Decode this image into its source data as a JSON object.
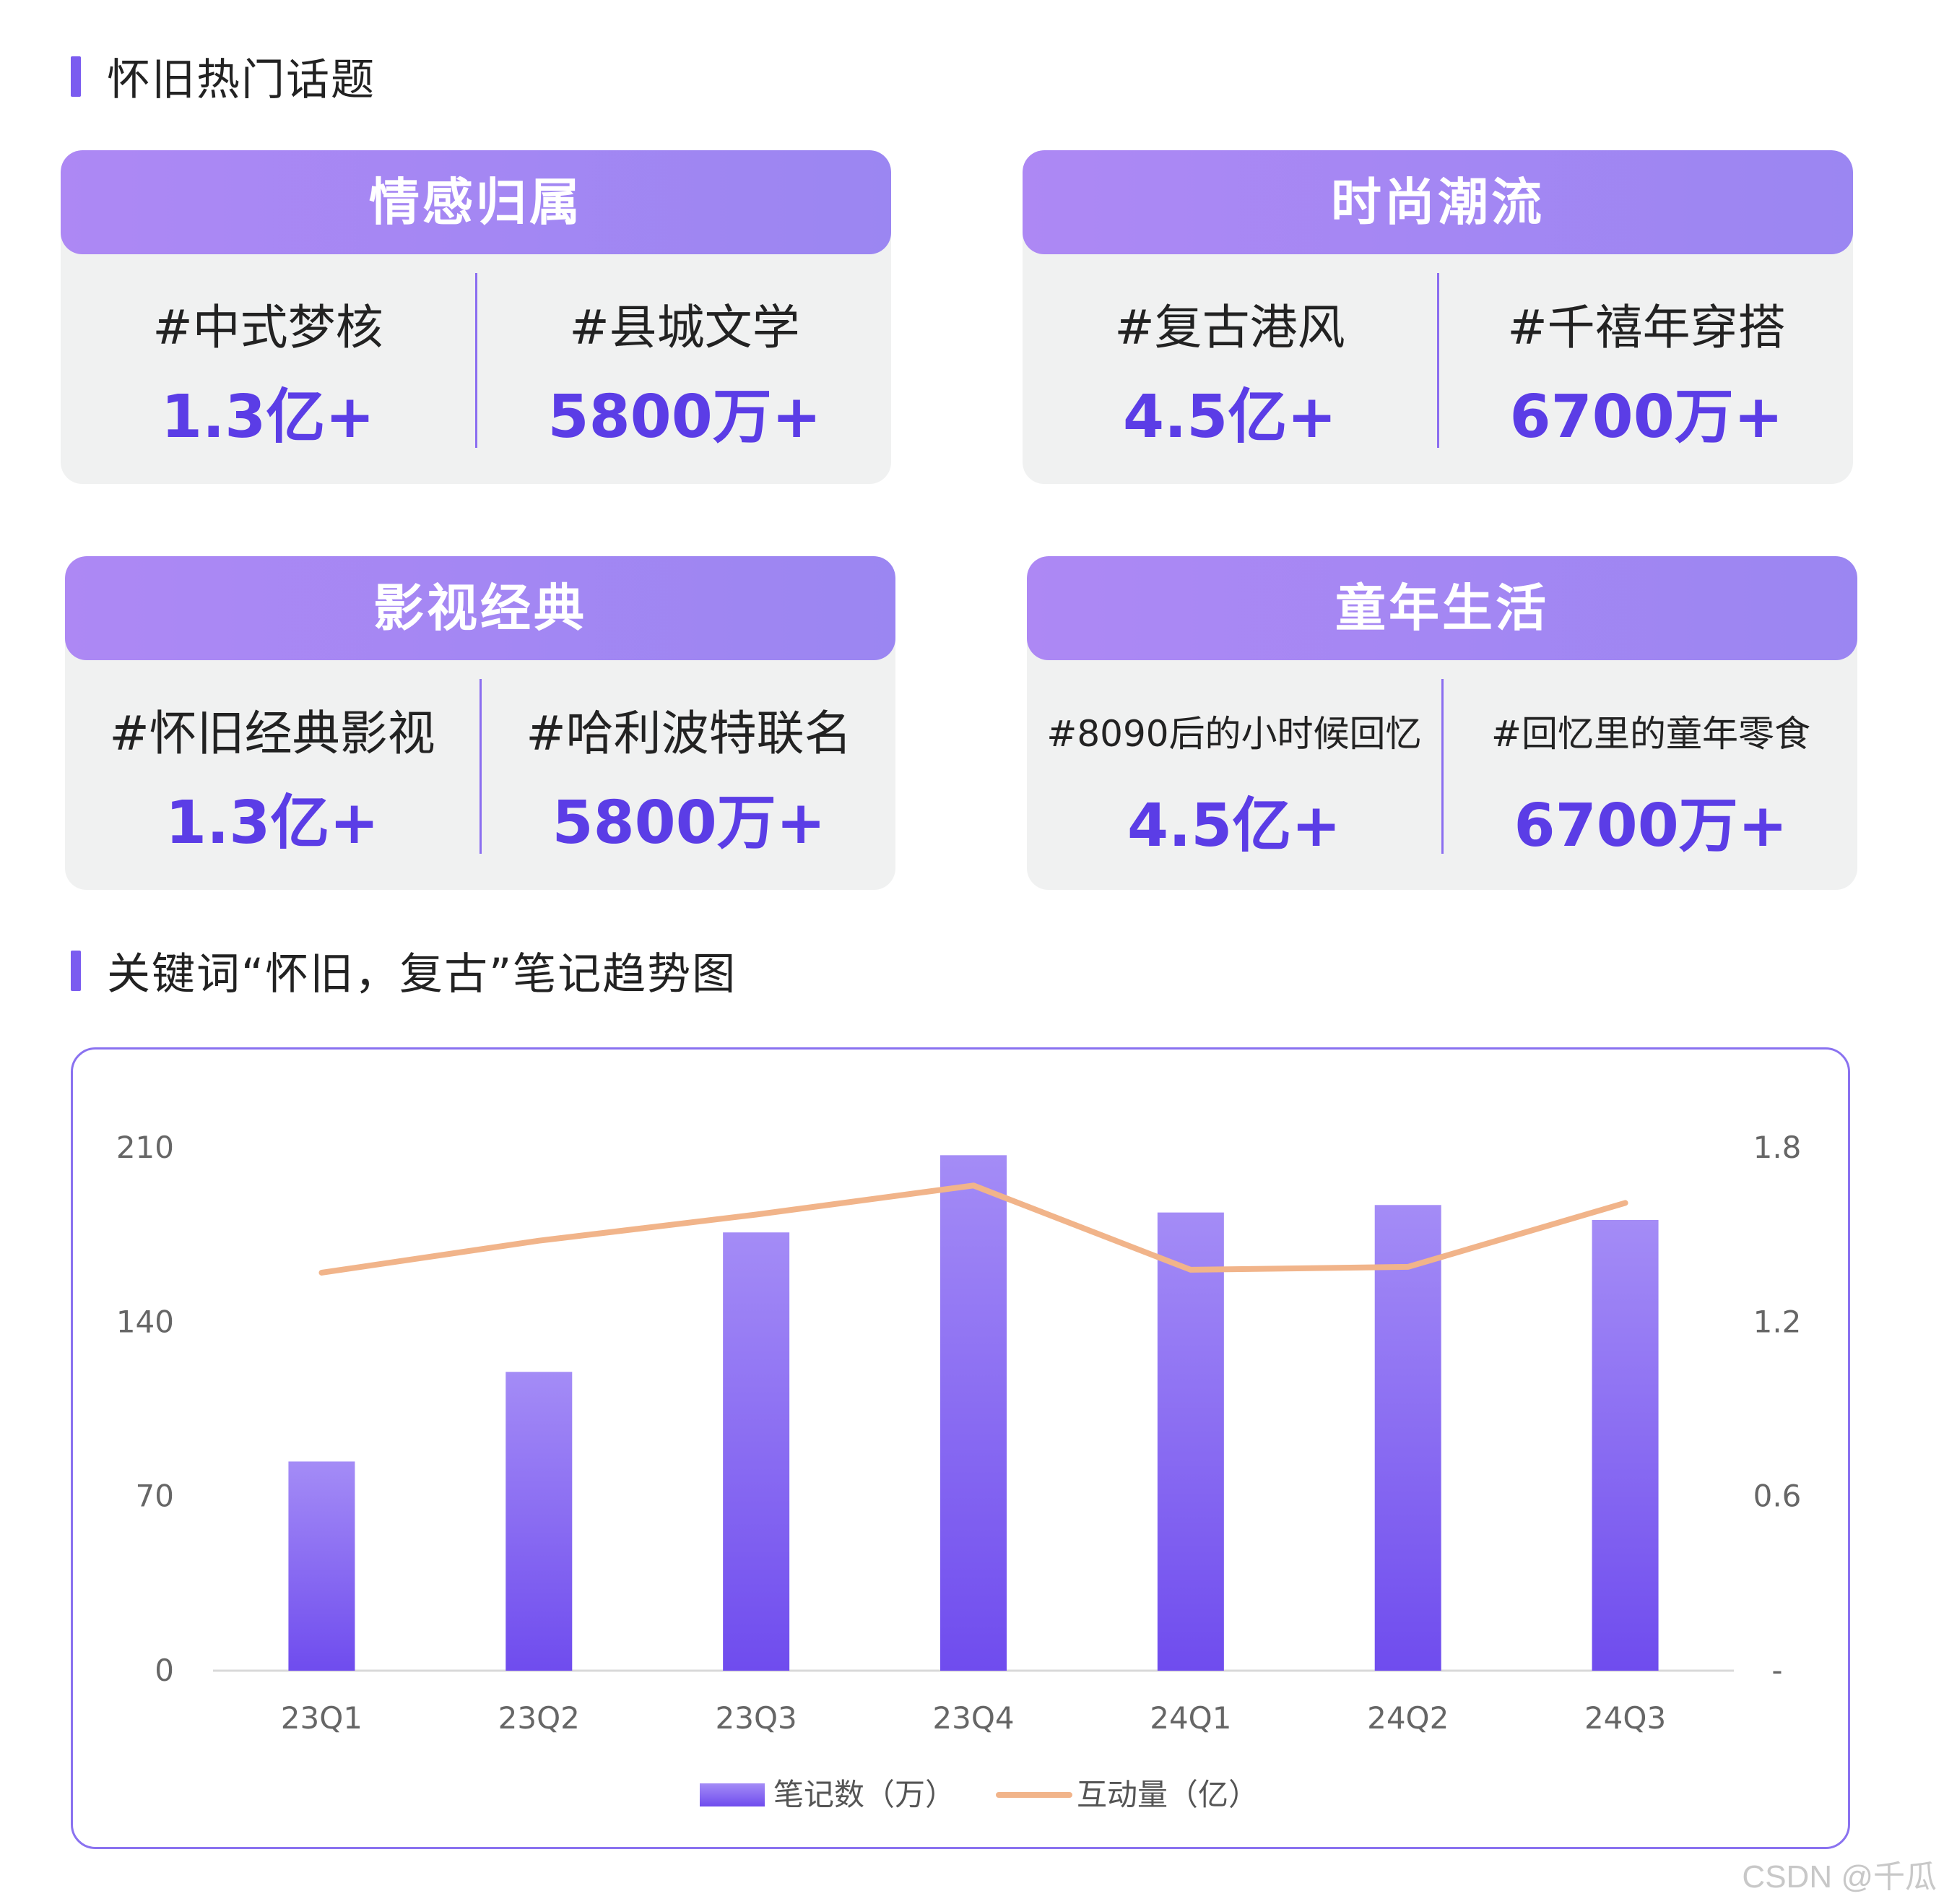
{
  "section1": {
    "title": "怀旧热门话题"
  },
  "cards": [
    {
      "title": "情感归属",
      "items": [
        {
          "topic": "#中式梦核",
          "value": "1.3亿+"
        },
        {
          "topic": "#县城文学",
          "value": "5800万+"
        }
      ]
    },
    {
      "title": "时尚潮流",
      "items": [
        {
          "topic": "#复古港风",
          "value": "4.5亿+"
        },
        {
          "topic": "#千禧年穿搭",
          "value": "6700万+"
        }
      ]
    },
    {
      "title": "影视经典",
      "items": [
        {
          "topic": "#怀旧经典影视",
          "value": "1.3亿+"
        },
        {
          "topic": "#哈利波特联名",
          "value": "5800万+"
        }
      ]
    },
    {
      "title": "童年生活",
      "items": [
        {
          "topic": "#8090后的小时候回忆",
          "value": "4.5亿+"
        },
        {
          "topic": "#回忆里的童年零食",
          "value": "6700万+"
        }
      ]
    }
  ],
  "section2": {
    "title": "关键词“怀旧，复古”笔记趋势图"
  },
  "chart_data": {
    "type": "bar",
    "categories": [
      "23Q1",
      "23Q2",
      "23Q3",
      "23Q4",
      "24Q1",
      "24Q2",
      "24Q3"
    ],
    "series": [
      {
        "name": "笔记数（万）",
        "type": "bar",
        "axis": "left",
        "values": [
          84,
          120,
          176,
          207,
          184,
          187,
          181
        ],
        "color": "#7b5cf0"
      },
      {
        "name": "互动量（亿）",
        "type": "line",
        "axis": "right",
        "values": [
          1.37,
          1.48,
          1.57,
          1.67,
          1.38,
          1.39,
          1.61
        ],
        "color": "#f1b48a"
      }
    ],
    "y_left": {
      "ylim": [
        0,
        210
      ],
      "ticks": [
        "0",
        "70",
        "140",
        "210"
      ]
    },
    "y_right": {
      "ylim": [
        0,
        1.8
      ],
      "ticks": [
        "-",
        "0.6",
        "1.2",
        "1.8"
      ]
    },
    "grid": false,
    "legend_position": "bottom"
  },
  "watermark": "CSDN @千瓜"
}
